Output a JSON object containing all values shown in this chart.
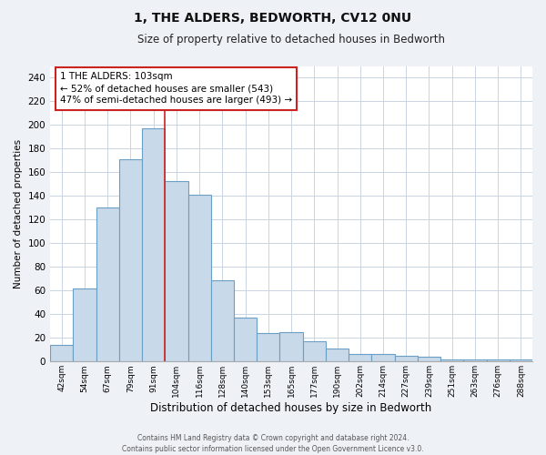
{
  "title": "1, THE ALDERS, BEDWORTH, CV12 0NU",
  "subtitle": "Size of property relative to detached houses in Bedworth",
  "xlabel": "Distribution of detached houses by size in Bedworth",
  "ylabel": "Number of detached properties",
  "bar_color": "#c8d9ea",
  "bar_edge_color": "#6b9fc5",
  "categories": [
    "42sqm",
    "54sqm",
    "67sqm",
    "79sqm",
    "91sqm",
    "104sqm",
    "116sqm",
    "128sqm",
    "140sqm",
    "153sqm",
    "165sqm",
    "177sqm",
    "190sqm",
    "202sqm",
    "214sqm",
    "227sqm",
    "239sqm",
    "251sqm",
    "263sqm",
    "276sqm",
    "288sqm"
  ],
  "values": [
    14,
    62,
    130,
    171,
    197,
    153,
    141,
    69,
    37,
    24,
    25,
    17,
    11,
    6,
    6,
    5,
    4,
    2,
    2,
    2,
    2
  ],
  "ylim": [
    0,
    250
  ],
  "yticks": [
    0,
    20,
    40,
    60,
    80,
    100,
    120,
    140,
    160,
    180,
    200,
    220,
    240
  ],
  "annotation_text_line1": "1 THE ALDERS: 103sqm",
  "annotation_text_line2": "← 52% of detached houses are smaller (543)",
  "annotation_text_line3": "47% of semi-detached houses are larger (493) →",
  "footer_line1": "Contains HM Land Registry data © Crown copyright and database right 2024.",
  "footer_line2": "Contains public sector information licensed under the Open Government Licence v3.0.",
  "background_color": "#eef2f7",
  "plot_background_color": "#ffffff",
  "grid_color": "#c8d4e0",
  "vline_color": "#cc2222",
  "vline_x": 5,
  "title_fontsize": 10,
  "subtitle_fontsize": 8.5
}
